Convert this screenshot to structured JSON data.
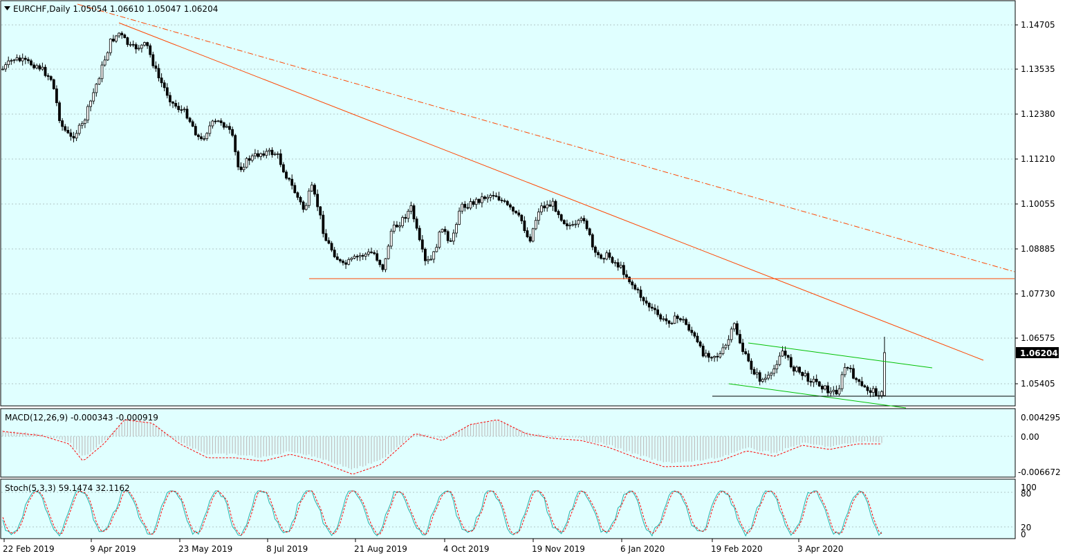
{
  "header": {
    "symbol_line": "EURCHF,Daily  1.05054 1.06610 1.05047 1.06204",
    "menu_icon": "triangle-down-icon"
  },
  "price_axis": {
    "labels": [
      "1.14705",
      "1.13535",
      "1.12380",
      "1.11210",
      "1.10055",
      "1.08885",
      "1.07730",
      "1.06575",
      "1.05405"
    ],
    "current_price": "1.06204"
  },
  "macd": {
    "label": "MACD(12,26,9) -0.000343 -0.000919",
    "axis_labels": [
      "0.004295",
      "0.00",
      "-0.006672"
    ]
  },
  "stoch": {
    "label": "Stoch(5,3,3) 59.1474 32.1162",
    "axis_labels": [
      "100",
      "80",
      "20",
      "0"
    ]
  },
  "time_axis": {
    "labels": [
      "22 Feb 2019",
      "9 Apr 2019",
      "23 May 2019",
      "8 Jul 2019",
      "21 Aug 2019",
      "4 Oct 2019",
      "19 Nov 2019",
      "6 Jan 2020",
      "19 Feb 2020",
      "3 Apr 2020"
    ]
  },
  "colors": {
    "background": "#e0ffff",
    "candles": "#000000",
    "trendline": "#ff4500",
    "channel": "#00c000",
    "macd_hist": "#c0c0c0",
    "macd_signal": "#ff0000",
    "stoch_main": "#20b2aa",
    "stoch_signal": "#ff0000",
    "current_price_bg": "#000000"
  },
  "chart_data": {
    "type": "candlestick",
    "symbol": "EURCHF",
    "timeframe": "Daily",
    "last_bar": {
      "open": 1.05054,
      "high": 1.0661,
      "low": 1.05047,
      "close": 1.06204
    },
    "close_path": [
      [
        "22 Feb 2019",
        1.136
      ],
      [
        "9 Apr 2019",
        1.14
      ],
      [
        "30 Apr 2019",
        1.138
      ],
      [
        "23 May 2019",
        1.123
      ],
      [
        "8 Jul 2019",
        1.112
      ],
      [
        "21 Aug 2019",
        1.082
      ],
      [
        "4 Oct 2019",
        1.093
      ],
      [
        "19 Nov 2019",
        1.101
      ],
      [
        "6 Jan 2020",
        1.072
      ],
      [
        "19 Feb 2020",
        1.062
      ],
      [
        "3 Apr 2020",
        1.055
      ],
      [
        "4 May 2020",
        1.062
      ]
    ],
    "levels": {
      "support_hline": 1.081,
      "bottom_hline": 1.0515
    },
    "macd": {
      "main": -0.000343,
      "signal": -0.000919
    },
    "stochastic": {
      "k": 59.1474,
      "d": 32.1162,
      "levels": [
        20,
        80
      ]
    }
  }
}
